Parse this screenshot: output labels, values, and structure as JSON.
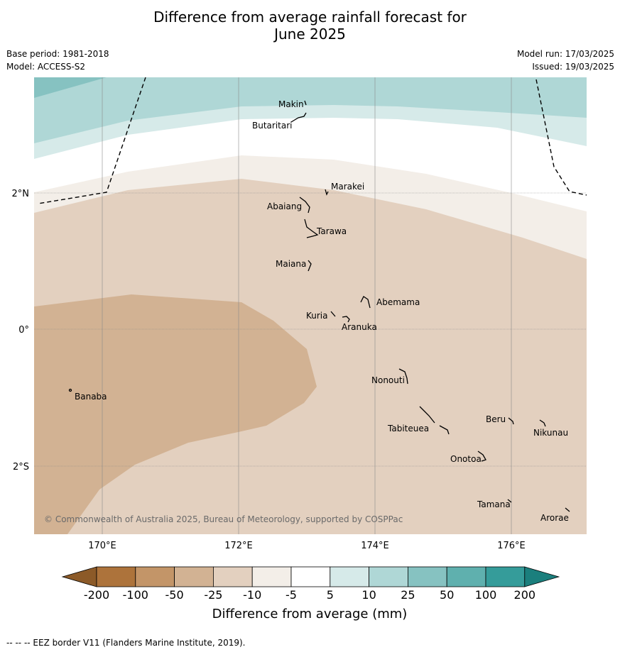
{
  "title_line1": "Difference from average rainfall forecast for",
  "title_line2": "June 2025",
  "base_period": "Base period: 1981-2018",
  "model": "Model: ACCESS-S2",
  "model_run": "Model run: 17/03/2025",
  "issued": "Issued: 19/03/2025",
  "lat_labels": [
    "2°N",
    "0°",
    "2°S"
  ],
  "lon_labels": [
    "170°E",
    "172°E",
    "174°E",
    "176°E"
  ],
  "places": {
    "makin": "Makin",
    "butaritari": "Butaritari",
    "marakei": "Marakei",
    "abaiang": "Abaiang",
    "tarawa": "Tarawa",
    "maiana": "Maiana",
    "abemama": "Abemama",
    "kuria": "Kuria",
    "aranuka": "Aranuka",
    "nonouti": "Nonouti",
    "banaba": "Banaba",
    "beru": "Beru",
    "tabiteuea": "Tabiteuea",
    "nikunau": "Nikunau",
    "onotoa": "Onotoa",
    "tamana": "Tamana",
    "arorae": "Arorae"
  },
  "copyright": "© Commonwealth of Australia 2025, Bureau of Meteorology, supported by COSPPac",
  "colorbar": {
    "ticks": [
      "-200",
      "-100",
      "-50",
      "-25",
      "-10",
      "-5",
      "5",
      "10",
      "25",
      "50",
      "100",
      "200"
    ],
    "colors": [
      "#8c5a28",
      "#ad733b",
      "#c39568",
      "#d2b293",
      "#e3d0bf",
      "#f3eee8",
      "#ffffff",
      "#d6eae9",
      "#afd7d6",
      "#86c2c1",
      "#5fb0ae",
      "#359c9a",
      "#1b7f7d"
    ],
    "title": "Difference from average (mm)"
  },
  "eez_note": "--  --  -- EEZ border V11 (Flanders Marine Institute, 2019)."
}
